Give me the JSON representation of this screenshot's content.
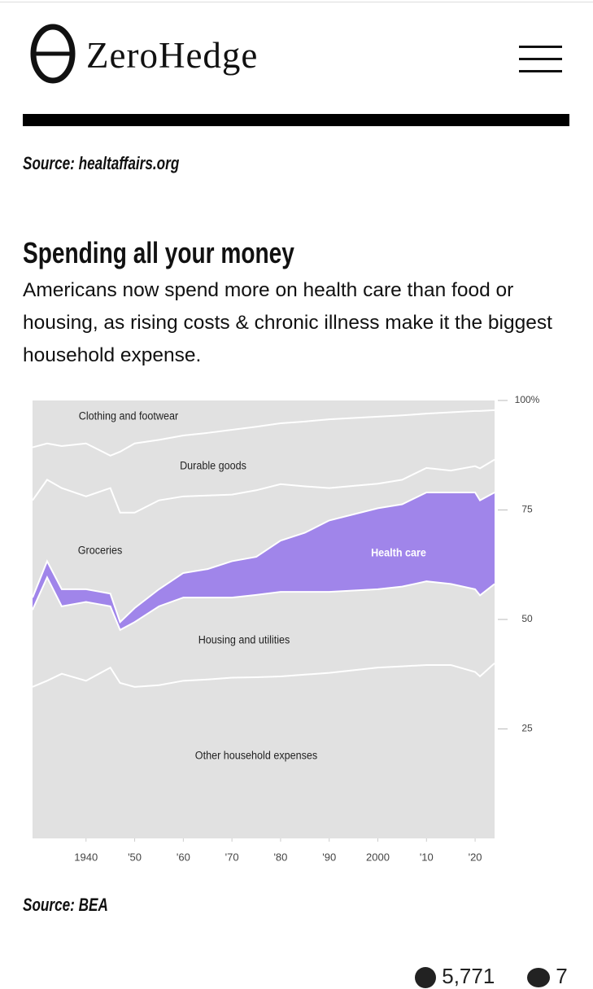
{
  "header": {
    "brand": "ZeroHedge"
  },
  "article": {
    "source_top": "Source: healtaffairs.org",
    "heading": "Spending all your money",
    "paragraph": "Americans now spend more on health care than food or housing, as rising costs & chronic illness make it the biggest household expense.",
    "source_bottom": "Source: BEA"
  },
  "footer": {
    "views": "5,771",
    "comments": "7"
  },
  "chart_data": {
    "type": "stacked_area",
    "x": [
      1929,
      1932,
      1935,
      1940,
      1945,
      1947,
      1950,
      1955,
      1960,
      1965,
      1970,
      1975,
      1980,
      1985,
      1990,
      1995,
      2000,
      2005,
      2010,
      2015,
      2020,
      2021,
      2024
    ],
    "series": [
      {
        "name": "Other household expenses",
        "color": "#e1e1e1",
        "values": [
          34.6,
          36,
          37.6,
          36,
          39,
          35.5,
          34.6,
          35,
          36,
          36.3,
          36.7,
          36.8,
          37,
          37.4,
          37.8,
          38.4,
          39,
          39.3,
          39.6,
          39.6,
          38,
          37,
          40
        ]
      },
      {
        "name": "Housing and utilities",
        "color": "#e1e1e1",
        "values": [
          17.6,
          23.6,
          15.4,
          18,
          14,
          12.1,
          14.8,
          18,
          19,
          18.7,
          18.3,
          18.8,
          19.3,
          18.9,
          18.5,
          18.2,
          17.9,
          18.2,
          19.1,
          18.5,
          18.9,
          18.5,
          18.1
        ]
      },
      {
        "name": "Health care",
        "color": "#a085ea",
        "values": [
          2.8,
          3.7,
          3.9,
          2.9,
          2.9,
          1.8,
          3.2,
          3.9,
          5.6,
          6.5,
          8.3,
          8.7,
          11.7,
          13.5,
          16.3,
          17.4,
          18.5,
          18.8,
          20.3,
          20.9,
          22.1,
          21.7,
          20.9
        ]
      },
      {
        "name": "Groceries",
        "color": "#e1e1e1",
        "values": [
          22.2,
          18.6,
          23.1,
          21.2,
          24.1,
          25,
          21.8,
          20.3,
          17.5,
          16.8,
          15.2,
          15.2,
          12.9,
          10.6,
          7.4,
          6.5,
          5.6,
          5.6,
          5.6,
          5,
          6,
          7.3,
          7.5
        ]
      },
      {
        "name": "Durable goods",
        "color": "#e1e1e1",
        "values": [
          12.1,
          8.3,
          9.6,
          12.1,
          7.4,
          13.9,
          15.8,
          13.8,
          13.9,
          14.3,
          14.8,
          14.5,
          13.9,
          14.8,
          15.7,
          15.5,
          15.3,
          14.7,
          12.4,
          13.3,
          12.6,
          13.1,
          11.3
        ]
      },
      {
        "name": "Clothing and footwear",
        "color": "#e1e1e1",
        "values": [
          10.7,
          9.8,
          10.4,
          9.8,
          12.6,
          11.7,
          9.8,
          9,
          8,
          7.4,
          6.7,
          6,
          5.2,
          4.8,
          4.3,
          4,
          3.7,
          3.4,
          3,
          2.7,
          2.4,
          2.4,
          2.2
        ]
      }
    ],
    "xlim": [
      1929,
      2024
    ],
    "xticks": [
      1940,
      {
        "value": 1950,
        "label": "'50"
      },
      {
        "value": 1960,
        "label": "'60"
      },
      {
        "value": 1970,
        "label": "'70"
      },
      {
        "value": 1980,
        "label": "'80"
      },
      {
        "value": 1990,
        "label": "'90"
      },
      2000,
      {
        "value": 2010,
        "label": "'10"
      },
      {
        "value": 2020,
        "label": "'20"
      }
    ],
    "ylim": [
      0,
      100
    ],
    "yticks": [
      {
        "value": 100,
        "label": "100%"
      },
      75,
      50,
      25
    ]
  }
}
